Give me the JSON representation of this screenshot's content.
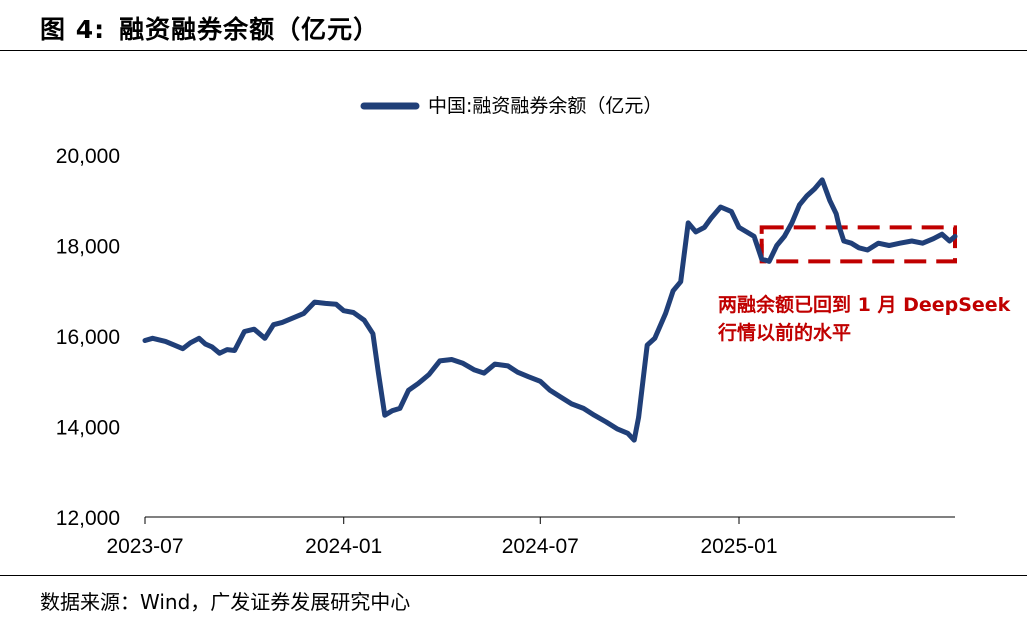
{
  "figure": {
    "number_label": "图 4:",
    "title": "融资融券余额（亿元）",
    "source": "数据来源：Wind，广发证券发展研究中心"
  },
  "chart_data": {
    "type": "line",
    "title": "",
    "xlabel": "",
    "ylabel": "",
    "legend_position": "top-center",
    "grid": false,
    "ylim": [
      12000,
      20000
    ],
    "yticks": [
      12000,
      14000,
      16000,
      18000,
      20000
    ],
    "ytick_labels": [
      "12,000",
      "14,000",
      "16,000",
      "18,000",
      "20,000"
    ],
    "xlim": [
      "2023-07-01",
      "2025-07-20"
    ],
    "xticks": [
      "2023-07-01",
      "2024-01-01",
      "2024-07-01",
      "2025-01-01"
    ],
    "xtick_labels": [
      "2023-07",
      "2024-01",
      "2024-07",
      "2025-01"
    ],
    "colors": {
      "series": "#203f78",
      "annotation": "#c00000"
    },
    "series": [
      {
        "name": "中国:融资融券余额（亿元）",
        "x": [
          "2023-07-01",
          "2023-07-08",
          "2023-07-20",
          "2023-07-28",
          "2023-08-05",
          "2023-08-12",
          "2023-08-20",
          "2023-08-26",
          "2023-09-01",
          "2023-09-08",
          "2023-09-15",
          "2023-09-22",
          "2023-10-01",
          "2023-10-10",
          "2023-10-20",
          "2023-10-28",
          "2023-11-05",
          "2023-11-15",
          "2023-11-25",
          "2023-12-05",
          "2023-12-15",
          "2023-12-25",
          "2024-01-01",
          "2024-01-10",
          "2024-01-20",
          "2024-01-28",
          "2024-02-02",
          "2024-02-08",
          "2024-02-15",
          "2024-02-22",
          "2024-03-01",
          "2024-03-10",
          "2024-03-20",
          "2024-03-30",
          "2024-04-10",
          "2024-04-20",
          "2024-05-01",
          "2024-05-10",
          "2024-05-20",
          "2024-06-01",
          "2024-06-10",
          "2024-06-20",
          "2024-07-01",
          "2024-07-10",
          "2024-07-20",
          "2024-07-30",
          "2024-08-10",
          "2024-08-20",
          "2024-08-31",
          "2024-09-10",
          "2024-09-20",
          "2024-09-26",
          "2024-09-30",
          "2024-10-08",
          "2024-10-15",
          "2024-10-25",
          "2024-11-01",
          "2024-11-08",
          "2024-11-15",
          "2024-11-22",
          "2024-11-30",
          "2024-12-06",
          "2024-12-15",
          "2024-12-25",
          "2025-01-01",
          "2025-01-08",
          "2025-01-15",
          "2025-01-22",
          "2025-01-29",
          "2025-02-05",
          "2025-02-12",
          "2025-02-19",
          "2025-02-26",
          "2025-03-05",
          "2025-03-12",
          "2025-03-19",
          "2025-03-26",
          "2025-04-01",
          "2025-04-04",
          "2025-04-08",
          "2025-04-15",
          "2025-04-22",
          "2025-04-30",
          "2025-05-10",
          "2025-05-20",
          "2025-05-30",
          "2025-06-10",
          "2025-06-20",
          "2025-06-30",
          "2025-07-08",
          "2025-07-15",
          "2025-07-20"
        ],
        "values": [
          15900,
          15950,
          15880,
          15800,
          15720,
          15850,
          15950,
          15820,
          15760,
          15620,
          15700,
          15680,
          16100,
          16150,
          15950,
          16250,
          16300,
          16400,
          16500,
          16750,
          16720,
          16700,
          16560,
          16520,
          16350,
          16050,
          15200,
          14250,
          14350,
          14400,
          14800,
          14950,
          15150,
          15450,
          15480,
          15400,
          15250,
          15180,
          15380,
          15340,
          15200,
          15100,
          15000,
          14800,
          14650,
          14500,
          14400,
          14250,
          14100,
          13950,
          13850,
          13700,
          14200,
          15800,
          15950,
          16500,
          17000,
          17200,
          18500,
          18300,
          18400,
          18600,
          18850,
          18750,
          18400,
          18300,
          18200,
          17700,
          17650,
          18000,
          18200,
          18500,
          18900,
          19100,
          19250,
          19450,
          19000,
          18700,
          18400,
          18100,
          18050,
          17950,
          17900,
          18050,
          18000,
          18050,
          18100,
          18050,
          18150,
          18250,
          18100,
          18200
        ]
      }
    ],
    "annotations": [
      {
        "type": "dashed-box",
        "x_range": [
          "2025-01-22",
          "2025-07-20"
        ],
        "y_range": [
          17650,
          18400
        ]
      },
      {
        "type": "dashed-tick",
        "x": "2025-01-22",
        "y_range": [
          17650,
          18150
        ]
      },
      {
        "type": "text",
        "lines": [
          "两融余额已回到 1 月 DeepSeek",
          "行情以前的水平"
        ]
      }
    ]
  }
}
